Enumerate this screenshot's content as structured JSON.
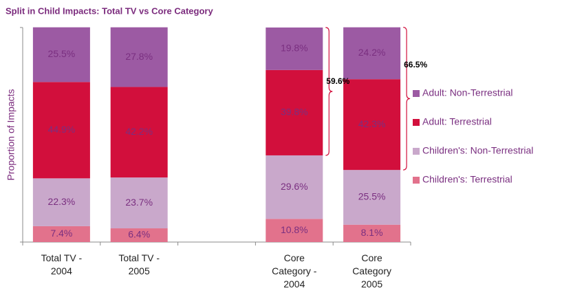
{
  "chart_data": {
    "type": "stacked-bar",
    "title": "Split in Child Impacts: Total TV vs Core Category",
    "y_label": "Proportion of Impacts",
    "categories": [
      "Total TV - 2004",
      "Total TV - 2005",
      null,
      "Core Category - 2004",
      "Core Category 2005"
    ],
    "ylim": [
      0,
      100
    ],
    "series": [
      {
        "name": "Children's: Terrestrial",
        "color": "#e2728c",
        "values": [
          7.4,
          6.4,
          null,
          10.8,
          8.1
        ],
        "value_labels": [
          "7.4%",
          "6.4%",
          null,
          "10.8%",
          "8.1%"
        ]
      },
      {
        "name": "Children's: Non-Terrestrial",
        "color": "#c9a8cb",
        "values": [
          22.3,
          23.7,
          null,
          29.6,
          25.5
        ],
        "value_labels": [
          "22.3%",
          "23.7%",
          null,
          "29.6%",
          "25.5%"
        ]
      },
      {
        "name": "Adult: Terrestrial",
        "color": "#d20f3c",
        "values": [
          44.9,
          42.2,
          null,
          39.8,
          42.3
        ],
        "value_labels": [
          "44.9%",
          "42.2%",
          null,
          "39.8%",
          "42.3%"
        ]
      },
      {
        "name": "Adult: Non-Terrestrial",
        "color": "#9c5aa3",
        "values": [
          25.5,
          27.8,
          null,
          19.8,
          24.2
        ],
        "value_labels": [
          "25.5%",
          "27.8%",
          null,
          "19.8%",
          "24.2%"
        ]
      }
    ],
    "annotations": [
      "59.6%",
      "66.5%"
    ]
  }
}
